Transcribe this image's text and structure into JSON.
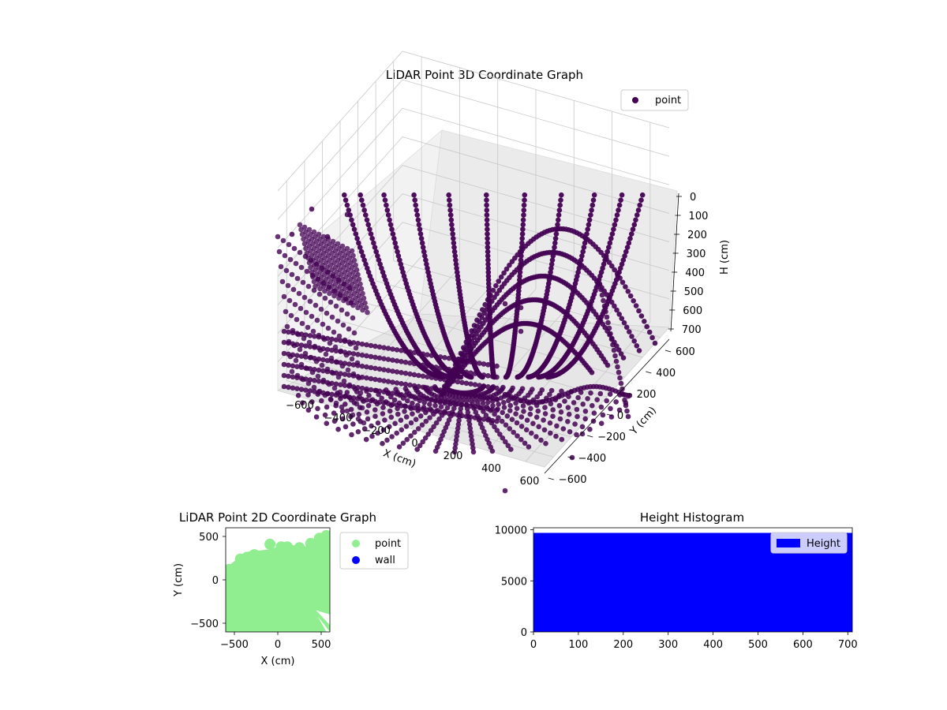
{
  "colors": {
    "point3d": "#440154",
    "point2d": "#90ee90",
    "wall": "#0000ff",
    "histogram": "#0000ff",
    "pane": "#f2f2f2"
  },
  "chart_data": [
    {
      "type": "scatter",
      "projection": "3d",
      "title": "LiDAR Point 3D Coordinate Graph",
      "xlabel": "X (cm)",
      "ylabel": "Y (cm)",
      "zlabel": "H (cm)",
      "xlim": [
        -700,
        700
      ],
      "ylim": [
        -700,
        700
      ],
      "zlim": [
        700,
        0
      ],
      "z_inverted": true,
      "xticks": [
        "−600",
        "−400",
        "−200",
        "0",
        "200",
        "400",
        "600"
      ],
      "yticks": [
        "−600",
        "−400",
        "−200",
        "0",
        "200",
        "400",
        "600"
      ],
      "zticks": [
        "0",
        "100",
        "200",
        "300",
        "400",
        "500",
        "600",
        "700"
      ],
      "grid": true,
      "legend": {
        "position": "top-right",
        "entries": [
          "point"
        ]
      },
      "series": [
        {
          "name": "point",
          "color": "#440154",
          "description_of_shape": "concentric sweep rings around origin"
        }
      ]
    },
    {
      "type": "scatter",
      "title": "LiDAR Point 2D Coordinate Graph",
      "xlabel": "X (cm)",
      "ylabel": "Y (cm)",
      "xlim": [
        -600,
        600
      ],
      "ylim": [
        -600,
        600
      ],
      "xticks": [
        "−500",
        "0",
        "500"
      ],
      "yticks": [
        "500",
        "0",
        "−500"
      ],
      "legend": {
        "position": "outside-right",
        "entries": [
          "point",
          "wall"
        ]
      },
      "series": [
        {
          "name": "point",
          "color": "#90ee90"
        },
        {
          "name": "wall",
          "color": "#0000ff"
        }
      ]
    },
    {
      "type": "bar",
      "title": "Height Histogram",
      "xlim": [
        0,
        710
      ],
      "ylim": [
        0,
        10200
      ],
      "xticks": [
        "0",
        "100",
        "200",
        "300",
        "400",
        "500",
        "600",
        "700"
      ],
      "yticks": [
        "10000",
        "5000",
        "0"
      ],
      "legend": {
        "position": "top-right",
        "entries": [
          "Height"
        ]
      },
      "series": [
        {
          "name": "Height",
          "color": "#0000ff",
          "bins_from": 0,
          "bins_to": 710,
          "count_per_bin": 9700
        }
      ]
    }
  ]
}
